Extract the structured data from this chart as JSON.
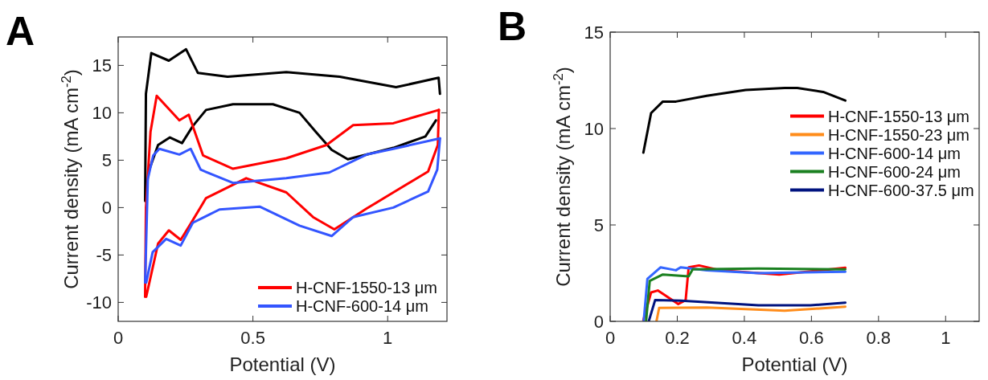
{
  "chart_data": [
    {
      "type": "line",
      "title": "A",
      "xlabel": "Potential (V)",
      "ylabel": "Current density (mA cm$^{-2}$)",
      "xlim": [
        0,
        1.22
      ],
      "xticks": [
        0,
        0.5,
        1
      ],
      "ylim": [
        -12,
        18
      ],
      "yticks": [
        -10,
        -5,
        0,
        5,
        10,
        15
      ],
      "legend": "bottom right",
      "grid": false,
      "series": [
        {
          "color": "#000000",
          "x": [
            0.1,
            0.103,
            0.123,
            0.188,
            0.252,
            0.296,
            0.406,
            0.624,
            0.822,
            1.031,
            1.189,
            1.194
          ],
          "values": [
            0.7,
            12,
            16.3,
            15.5,
            16.7,
            14.2,
            13.8,
            14.3,
            13.8,
            12.7,
            13.7,
            12
          ]
        },
        {
          "color": "#000000",
          "x": [
            0.113,
            0.148,
            0.192,
            0.237,
            0.277,
            0.326,
            0.426,
            0.574,
            0.673,
            0.733,
            0.792,
            0.852,
            1.021,
            1.14,
            1.179
          ],
          "values": [
            3.8,
            6.6,
            7.4,
            6.8,
            8.6,
            10.3,
            10.9,
            10.9,
            10,
            8,
            6.1,
            5.1,
            6.3,
            7.5,
            9.2
          ]
        },
        {
          "name": "H-CNF-1550-13 μm",
          "color": "#ff0000",
          "x": [
            0.1,
            0.103,
            0.12,
            0.143,
            0.227,
            0.262,
            0.315,
            0.426,
            0.624,
            0.773,
            0.872,
            1.021,
            1.19
          ],
          "values": [
            -9.4,
            0,
            8,
            11.8,
            9.2,
            9.8,
            5.5,
            4.1,
            5.2,
            6.6,
            8.7,
            8.9,
            10.3
          ]
        },
        {
          "color": "#ff0000",
          "x": [
            0.1,
            0.104,
            0.148,
            0.188,
            0.232,
            0.267,
            0.326,
            0.475,
            0.624,
            0.723,
            0.802,
            0.922,
            1.021,
            1.15,
            1.186,
            1.19
          ],
          "values": [
            -9.4,
            -9.4,
            -3.8,
            -2.4,
            -3.4,
            -1.8,
            1,
            3.1,
            1.6,
            -1,
            -2.3,
            -0.1,
            1.6,
            3.8,
            6.6,
            10.3
          ]
        },
        {
          "name": "H-CNF-600-14 μm",
          "color": "#3355ff",
          "x": [
            0.1,
            0.11,
            0.13,
            0.153,
            0.227,
            0.269,
            0.306,
            0.426,
            0.624,
            0.783,
            0.922,
            1.021,
            1.194
          ],
          "values": [
            -7.9,
            3,
            5.5,
            6.2,
            5.6,
            6.2,
            4,
            2.6,
            3.1,
            3.7,
            5.6,
            6.2,
            7.3
          ]
        },
        {
          "color": "#3355ff",
          "x": [
            0.1,
            0.104,
            0.128,
            0.178,
            0.232,
            0.277,
            0.376,
            0.525,
            0.673,
            0.792,
            0.872,
            1.021,
            1.15,
            1.184,
            1.194
          ],
          "values": [
            -7.9,
            -7.9,
            -4.7,
            -3.3,
            -4,
            -1.6,
            -0.2,
            0.1,
            -1.9,
            -3,
            -1,
            0,
            1.7,
            4,
            7.3
          ]
        }
      ]
    },
    {
      "type": "line",
      "title": "B",
      "xlabel": "Potential (V)",
      "ylabel": "Current density (mA cm$^{-2}$)",
      "xlim": [
        0,
        1.1
      ],
      "xticks": [
        0,
        0.2,
        0.4,
        0.6,
        0.8,
        1
      ],
      "ylim": [
        0,
        15
      ],
      "yticks": [
        0,
        5,
        10,
        15
      ],
      "legend": "right",
      "grid": false,
      "series": [
        {
          "color": "#000000",
          "x": [
            0.099,
            0.122,
            0.157,
            0.196,
            0.288,
            0.404,
            0.52,
            0.558,
            0.635,
            0.701
          ],
          "values": [
            8.75,
            10.8,
            11.4,
            11.4,
            11.7,
            12,
            12.1,
            12.1,
            11.9,
            11.45
          ]
        },
        {
          "name": "H-CNF-1550-13 μm",
          "color": "#ff0000",
          "x": [
            0.099,
            0.122,
            0.142,
            0.203,
            0.225,
            0.234,
            0.265,
            0.327,
            0.504,
            0.701
          ],
          "values": [
            0.07,
            1.5,
            1.6,
            0.9,
            1.1,
            2.8,
            2.9,
            2.65,
            2.43,
            2.78
          ]
        },
        {
          "name": "H-CNF-1550-23 μm",
          "color": "#ff8c1a",
          "x": [
            0.138,
            0.146,
            0.288,
            0.52,
            0.701
          ],
          "values": [
            0,
            0.7,
            0.72,
            0.55,
            0.76
          ]
        },
        {
          "name": "H-CNF-600-14 μm",
          "color": "#3366ff",
          "x": [
            0.1,
            0.111,
            0.15,
            0.196,
            0.21,
            0.288,
            0.442,
            0.701
          ],
          "values": [
            0,
            2.2,
            2.8,
            2.65,
            2.8,
            2.65,
            2.5,
            2.57
          ]
        },
        {
          "name": "H-CNF-600-24 μm",
          "color": "#1a8020",
          "x": [
            0.107,
            0.118,
            0.157,
            0.234,
            0.246,
            0.442,
            0.701
          ],
          "values": [
            0,
            2.1,
            2.43,
            2.33,
            2.7,
            2.74,
            2.7
          ]
        },
        {
          "name": "H-CNF-600-37.5 μm",
          "color": "#00137f",
          "x": [
            0.115,
            0.134,
            0.211,
            0.442,
            0.597,
            0.701
          ],
          "values": [
            0,
            1.1,
            1.07,
            0.83,
            0.83,
            0.97
          ]
        }
      ]
    }
  ]
}
